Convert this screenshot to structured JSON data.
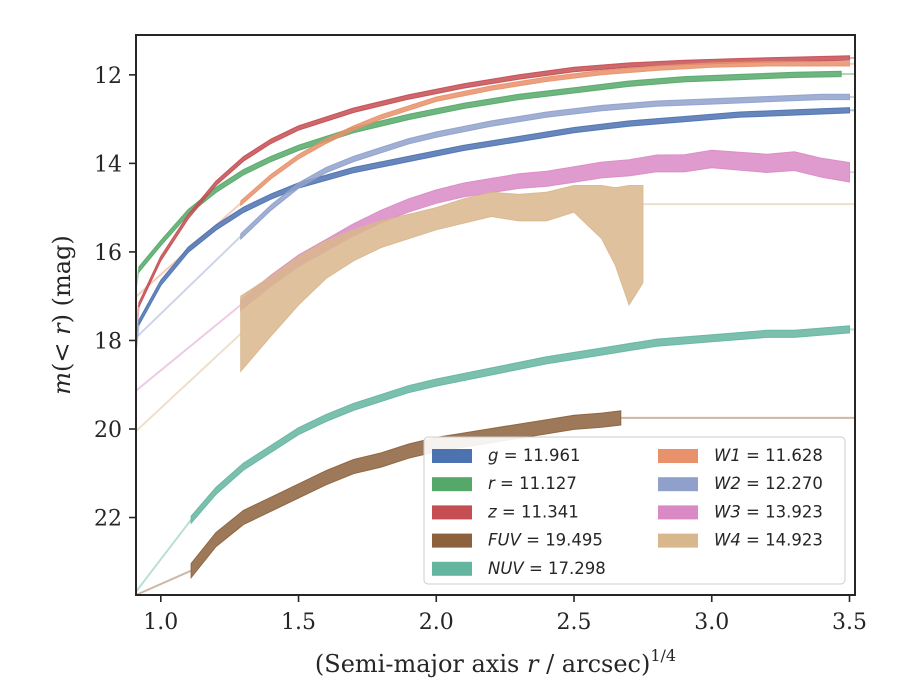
{
  "chart_data": {
    "type": "line",
    "xlabel_main": "(Semi-major axis ",
    "xlabel_var": "r",
    "xlabel_unit": " / arcsec)",
    "xlabel_exp": "1/4",
    "ylabel_var1": "m",
    "ylabel_open": "(",
    "ylabel_lt": "< ",
    "ylabel_var2": "r",
    "ylabel_close": ") (mag)",
    "xlim": [
      0.91,
      3.52
    ],
    "ylim": [
      23.75,
      11.1
    ],
    "y_inverted": true,
    "xticks": [
      "1.0",
      "1.5",
      "2.0",
      "2.5",
      "3.0",
      "3.5"
    ],
    "yticks": [
      "12",
      "14",
      "16",
      "18",
      "20",
      "22"
    ],
    "grid": false,
    "legend_position": "lower-right",
    "series": [
      {
        "name": "g",
        "legend_value": "11.961",
        "color": "#4c72b0",
        "x": [
          0.92,
          1.0,
          1.1,
          1.2,
          1.3,
          1.4,
          1.5,
          1.7,
          1.9,
          2.1,
          2.3,
          2.5,
          2.7,
          2.9,
          3.1,
          3.3,
          3.5
        ],
        "y": [
          17.6,
          16.7,
          15.95,
          15.45,
          15.05,
          14.75,
          14.5,
          14.15,
          13.9,
          13.65,
          13.45,
          13.25,
          13.1,
          13.0,
          12.9,
          12.85,
          12.8
        ],
        "halfwidth": 0.06
      },
      {
        "name": "r",
        "legend_value": "11.127",
        "color": "#55a868",
        "x": [
          0.92,
          1.0,
          1.1,
          1.2,
          1.3,
          1.4,
          1.5,
          1.7,
          1.9,
          2.1,
          2.3,
          2.5,
          2.7,
          2.9,
          3.1,
          3.3,
          3.47
        ],
        "y": [
          16.4,
          15.8,
          15.1,
          14.6,
          14.2,
          13.9,
          13.65,
          13.25,
          12.95,
          12.7,
          12.5,
          12.35,
          12.2,
          12.1,
          12.05,
          12.0,
          11.98
        ],
        "halfwidth": 0.06
      },
      {
        "name": "z",
        "legend_value": "11.341",
        "color": "#c44e52",
        "x": [
          0.92,
          1.0,
          1.1,
          1.2,
          1.3,
          1.4,
          1.5,
          1.7,
          1.9,
          2.1,
          2.3,
          2.5,
          2.7,
          2.9,
          3.1,
          3.3,
          3.5
        ],
        "y": [
          17.2,
          16.15,
          15.2,
          14.45,
          13.9,
          13.5,
          13.2,
          12.8,
          12.5,
          12.25,
          12.05,
          11.88,
          11.78,
          11.72,
          11.68,
          11.65,
          11.62
        ],
        "halfwidth": 0.05
      },
      {
        "name": "FUV",
        "legend_value": "19.495",
        "color": "#8c613c",
        "x": [
          1.11,
          1.2,
          1.3,
          1.4,
          1.5,
          1.6,
          1.7,
          1.8,
          1.9,
          2.0,
          2.1,
          2.2,
          2.3,
          2.4,
          2.5,
          2.6,
          2.67
        ],
        "y": [
          23.2,
          22.5,
          22.0,
          21.7,
          21.4,
          21.1,
          20.85,
          20.7,
          20.5,
          20.35,
          20.25,
          20.15,
          20.05,
          19.95,
          19.85,
          19.8,
          19.75
        ],
        "halfwidth": 0.16
      },
      {
        "name": "NUV",
        "legend_value": "17.298",
        "color": "#64b5a0",
        "x": [
          1.11,
          1.2,
          1.3,
          1.4,
          1.5,
          1.6,
          1.7,
          1.8,
          1.9,
          2.0,
          2.2,
          2.4,
          2.6,
          2.8,
          3.0,
          3.2,
          3.3,
          3.5
        ],
        "y": [
          22.05,
          21.4,
          20.85,
          20.45,
          20.05,
          19.75,
          19.5,
          19.3,
          19.1,
          18.95,
          18.7,
          18.45,
          18.25,
          18.05,
          17.95,
          17.85,
          17.85,
          17.75
        ],
        "halfwidth": 0.08
      },
      {
        "name": "W1",
        "legend_value": "11.628",
        "color": "#e8916a",
        "x": [
          1.29,
          1.4,
          1.5,
          1.6,
          1.7,
          1.8,
          1.9,
          2.0,
          2.2,
          2.4,
          2.6,
          2.8,
          3.0,
          3.2,
          3.4,
          3.5
        ],
        "y": [
          14.9,
          14.3,
          13.85,
          13.5,
          13.2,
          12.95,
          12.75,
          12.55,
          12.3,
          12.1,
          11.95,
          11.85,
          11.78,
          11.75,
          11.75,
          11.75
        ],
        "halfwidth": 0.05
      },
      {
        "name": "W2",
        "legend_value": "12.270",
        "color": "#8fa1cb",
        "x": [
          1.29,
          1.4,
          1.5,
          1.6,
          1.7,
          1.8,
          1.9,
          2.0,
          2.2,
          2.4,
          2.6,
          2.8,
          3.0,
          3.2,
          3.4,
          3.5
        ],
        "y": [
          15.65,
          15.0,
          14.5,
          14.15,
          13.9,
          13.7,
          13.5,
          13.35,
          13.1,
          12.9,
          12.75,
          12.65,
          12.6,
          12.55,
          12.5,
          12.5
        ],
        "halfwidth": 0.06
      },
      {
        "name": "W3",
        "legend_value": "13.923",
        "color": "#d98ac5",
        "x": [
          1.29,
          1.4,
          1.5,
          1.6,
          1.7,
          1.8,
          1.9,
          2.0,
          2.1,
          2.2,
          2.3,
          2.4,
          2.5,
          2.6,
          2.7,
          2.8,
          2.9,
          3.0,
          3.1,
          3.2,
          3.3,
          3.4,
          3.5
        ],
        "y": [
          17.2,
          16.65,
          16.2,
          15.85,
          15.5,
          15.2,
          14.95,
          14.75,
          14.6,
          14.5,
          14.4,
          14.35,
          14.25,
          14.15,
          14.1,
          14.0,
          14.0,
          13.9,
          13.95,
          14.0,
          13.95,
          14.1,
          14.2
        ],
        "halfwidth_start": 0.12,
        "halfwidth_end": 0.22
      },
      {
        "name": "W4",
        "legend_value": "14.923",
        "color": "#d9b78c",
        "x": [
          1.29,
          1.4,
          1.5,
          1.6,
          1.7,
          1.8,
          1.9,
          2.0,
          2.1,
          2.2,
          2.3,
          2.4,
          2.5,
          2.6,
          2.65,
          2.7,
          2.75
        ],
        "y_upper": [
          17.0,
          16.55,
          16.1,
          15.75,
          15.5,
          15.3,
          15.15,
          15.0,
          14.8,
          14.65,
          14.7,
          14.65,
          14.5,
          14.5,
          14.55,
          14.5,
          14.5
        ],
        "y_lower": [
          18.7,
          17.9,
          17.2,
          16.6,
          16.2,
          15.9,
          15.7,
          15.5,
          15.35,
          15.2,
          15.3,
          15.3,
          15.1,
          15.7,
          16.3,
          17.2,
          16.7
        ],
        "extrapolation_level": 14.92
      }
    ]
  },
  "legend_equals": " = "
}
